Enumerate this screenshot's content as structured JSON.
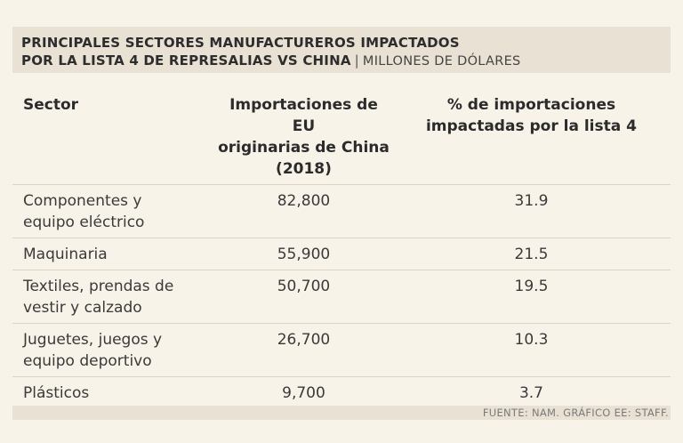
{
  "chart_data": {
    "type": "table",
    "title_line1": "PRINCIPALES SECTORES MANUFACTUREROS IMPACTADOS",
    "title_line2": "POR LA LISTA 4 DE REPRESALIAS VS CHINA",
    "separator": "|",
    "unit": "MILLONES DE DÓLARES",
    "headers": {
      "sector": "Sector",
      "imports_1": "Importaciones de EU",
      "imports_2": "originarias de China",
      "imports_3": "(2018)",
      "pct_1": "% de importaciones",
      "pct_2": "impactadas por la lista 4"
    },
    "rows": [
      {
        "sector_1": "Componentes y",
        "sector_2": "equipo eléctrico",
        "imports": "82,800",
        "pct": "31.9"
      },
      {
        "sector_1": "Maquinaria",
        "sector_2": "",
        "imports": "55,900",
        "pct": "21.5"
      },
      {
        "sector_1": "Textiles, prendas de",
        "sector_2": "vestir y calzado",
        "imports": "50,700",
        "pct": "19.5"
      },
      {
        "sector_1": "Juguetes, juegos y",
        "sector_2": "equipo deportivo",
        "imports": "26,700",
        "pct": "10.3"
      },
      {
        "sector_1": "Plásticos",
        "sector_2": "",
        "imports": "9,700",
        "pct": "3.7"
      }
    ],
    "source": "FUENTE: NAM. GRÁFICO EE: STAFF."
  }
}
